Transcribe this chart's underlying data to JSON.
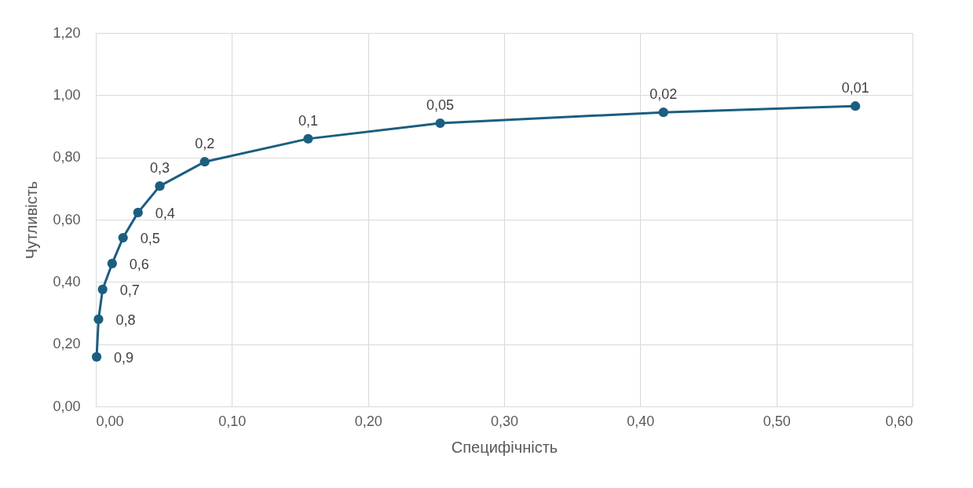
{
  "chart_data": {
    "type": "line",
    "xlabel": "Специфічність",
    "ylabel": "Чутливість",
    "x": [
      0.0006,
      0.002,
      0.005,
      0.012,
      0.02,
      0.031,
      0.047,
      0.08,
      0.156,
      0.253,
      0.417,
      0.558
    ],
    "series": [
      {
        "color": "#1b5e80",
        "values": [
          0.159,
          0.28,
          0.376,
          0.459,
          0.542,
          0.623,
          0.708,
          0.786,
          0.86,
          0.91,
          0.945,
          0.965
        ]
      }
    ],
    "xlim": [
      0,
      0.6
    ],
    "ylim": [
      0,
      1.2
    ],
    "xticks": [
      {
        "value": 0,
        "label": "0,00"
      },
      {
        "value": 0.1,
        "label": "0,10"
      },
      {
        "value": 0.2,
        "label": "0,20"
      },
      {
        "value": 0.3,
        "label": "0,30"
      },
      {
        "value": 0.4,
        "label": "0,40"
      },
      {
        "value": 0.5,
        "label": "0,50"
      },
      {
        "value": 0.6,
        "label": "0,60"
      }
    ],
    "yticks": [
      {
        "value": 0,
        "label": "0,00"
      },
      {
        "value": 0.2,
        "label": "0,20"
      },
      {
        "value": 0.4,
        "label": "0,40"
      },
      {
        "value": 0.6,
        "label": "0,60"
      },
      {
        "value": 0.8,
        "label": "0,80"
      },
      {
        "value": 1,
        "label": "1,00"
      },
      {
        "value": 1.2,
        "label": "1,20"
      }
    ],
    "grid": true,
    "marker": "circle",
    "annotations": [
      {
        "text": "0,9",
        "x": 0.0006,
        "y": 0.159
      },
      {
        "text": "0,8",
        "x": 0.002,
        "y": 0.28
      },
      {
        "text": "0,7",
        "x": 0.005,
        "y": 0.376
      },
      {
        "text": "0,6",
        "x": 0.012,
        "y": 0.459
      },
      {
        "text": "0,5",
        "x": 0.02,
        "y": 0.542
      },
      {
        "text": "0,4",
        "x": 0.031,
        "y": 0.623
      },
      {
        "text": "0,3",
        "x": 0.047,
        "y": 0.708
      },
      {
        "text": "0,2",
        "x": 0.08,
        "y": 0.786
      },
      {
        "text": "0,1",
        "x": 0.156,
        "y": 0.86
      },
      {
        "text": "0,05",
        "x": 0.253,
        "y": 0.91
      },
      {
        "text": "0,02",
        "x": 0.417,
        "y": 0.945
      },
      {
        "text": "0,01",
        "x": 0.558,
        "y": 0.965
      }
    ]
  }
}
